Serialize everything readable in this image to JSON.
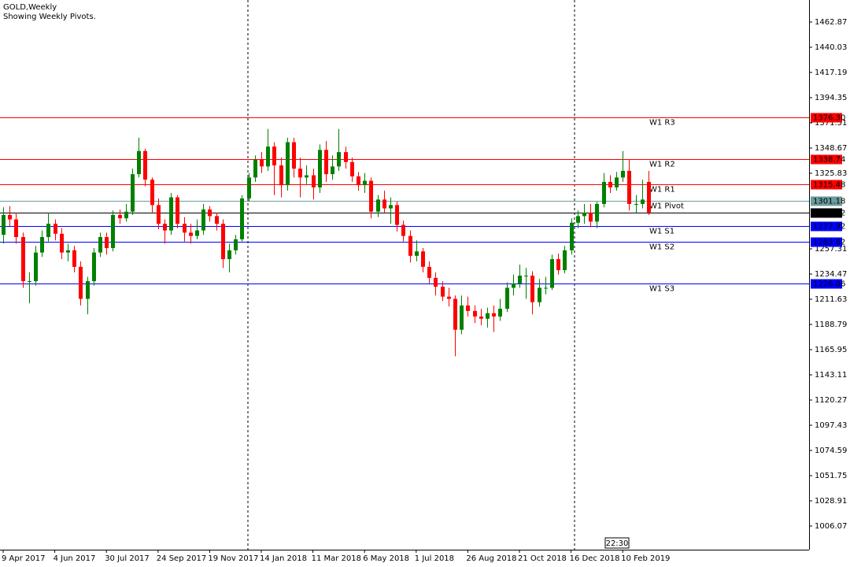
{
  "chart_data": {
    "type": "candlestick",
    "title": "GOLD,Weekly",
    "subtitle": "Showing Weekly Pivots.",
    "categories": [
      "9 Apr 2017",
      null,
      null,
      null,
      null,
      null,
      null,
      null,
      "4 Jun 2017",
      null,
      null,
      null,
      null,
      null,
      null,
      null,
      "30 Jul 2017",
      null,
      null,
      null,
      null,
      null,
      null,
      null,
      "24 Sep 2017",
      null,
      null,
      null,
      null,
      null,
      null,
      null,
      "19 Nov 2017",
      null,
      null,
      null,
      null,
      null,
      null,
      null,
      "14 Jan 2018",
      null,
      null,
      null,
      null,
      null,
      null,
      null,
      "11 Mar 2018",
      null,
      null,
      null,
      null,
      null,
      null,
      null,
      "6 May 2018",
      null,
      null,
      null,
      null,
      null,
      null,
      null,
      "1 Jul 2018",
      null,
      null,
      null,
      null,
      null,
      null,
      null,
      "26 Aug 2018",
      null,
      null,
      null,
      null,
      null,
      null,
      null,
      "21 Oct 2018",
      null,
      null,
      null,
      null,
      null,
      null,
      null,
      "16 Dec 2018",
      null,
      null,
      null,
      null,
      null,
      null,
      null,
      "10 Feb 2019",
      null,
      null,
      null,
      null
    ],
    "open": [
      1270,
      1288,
      1284,
      1268,
      1228,
      1228,
      1254,
      1268,
      1280,
      1271,
      1254,
      1256,
      1241,
      1212,
      1228,
      1254,
      1268,
      1258,
      1288,
      1285,
      1291,
      1325,
      1346,
      1320,
      1297,
      1280,
      1274,
      1304,
      1280,
      1272,
      1269,
      1274,
      1293,
      1287,
      1280,
      1248,
      1256,
      1266,
      1303,
      1322,
      1338,
      1332,
      1350,
      1333,
      1315,
      1354,
      1330,
      1322,
      1324,
      1313,
      1347,
      1325,
      1332,
      1345,
      1336,
      1323,
      1315,
      1319,
      1291,
      1302,
      1294,
      1297,
      1279,
      1269,
      1251,
      1255,
      1241,
      1231,
      1223,
      1214,
      1212,
      1184,
      1206,
      1201,
      1196,
      1194,
      1199,
      1196,
      1203,
      1222,
      1226,
      1233,
      1233,
      1209,
      1222,
      1222,
      1248,
      1238,
      1256,
      1281,
      1287,
      1290,
      1282,
      1298,
      1318,
      1313,
      1322,
      1328,
      1298,
      1298,
      1318
    ],
    "high": [
      1295,
      1296,
      1290,
      1272,
      1236,
      1260,
      1274,
      1290,
      1284,
      1276,
      1262,
      1260,
      1246,
      1232,
      1258,
      1272,
      1272,
      1292,
      1293,
      1298,
      1330,
      1358,
      1348,
      1322,
      1303,
      1284,
      1308,
      1306,
      1286,
      1280,
      1284,
      1298,
      1296,
      1290,
      1284,
      1262,
      1270,
      1306,
      1326,
      1342,
      1345,
      1366,
      1354,
      1340,
      1358,
      1358,
      1340,
      1333,
      1330,
      1352,
      1355,
      1342,
      1366,
      1350,
      1340,
      1327,
      1326,
      1322,
      1306,
      1310,
      1304,
      1300,
      1283,
      1274,
      1265,
      1258,
      1246,
      1236,
      1228,
      1222,
      1215,
      1215,
      1214,
      1206,
      1203,
      1204,
      1206,
      1212,
      1227,
      1234,
      1243,
      1240,
      1237,
      1230,
      1232,
      1252,
      1253,
      1260,
      1285,
      1292,
      1298,
      1298,
      1300,
      1326,
      1324,
      1327,
      1346,
      1338,
      1306,
      1320,
      1328
    ],
    "low": [
      1262,
      1278,
      1262,
      1222,
      1208,
      1224,
      1250,
      1264,
      1265,
      1248,
      1246,
      1236,
      1206,
      1198,
      1224,
      1250,
      1252,
      1255,
      1280,
      1282,
      1288,
      1322,
      1314,
      1290,
      1275,
      1262,
      1270,
      1276,
      1264,
      1262,
      1266,
      1270,
      1282,
      1274,
      1240,
      1236,
      1252,
      1264,
      1300,
      1318,
      1326,
      1328,
      1306,
      1304,
      1310,
      1322,
      1304,
      1316,
      1302,
      1308,
      1318,
      1320,
      1328,
      1330,
      1318,
      1310,
      1308,
      1285,
      1286,
      1290,
      1280,
      1273,
      1264,
      1245,
      1246,
      1236,
      1226,
      1215,
      1210,
      1205,
      1160,
      1180,
      1196,
      1190,
      1188,
      1186,
      1182,
      1192,
      1200,
      1215,
      1222,
      1212,
      1198,
      1205,
      1216,
      1220,
      1234,
      1235,
      1252,
      1276,
      1280,
      1277,
      1276,
      1295,
      1308,
      1310,
      1318,
      1292,
      1290,
      1294,
      1288
    ],
    "close": [
      1288,
      1284,
      1268,
      1228,
      1228,
      1254,
      1268,
      1280,
      1271,
      1254,
      1256,
      1241,
      1212,
      1228,
      1254,
      1268,
      1258,
      1288,
      1285,
      1291,
      1325,
      1346,
      1320,
      1297,
      1280,
      1274,
      1304,
      1280,
      1272,
      1269,
      1274,
      1293,
      1287,
      1280,
      1248,
      1256,
      1266,
      1303,
      1322,
      1338,
      1332,
      1350,
      1333,
      1315,
      1354,
      1330,
      1322,
      1324,
      1313,
      1347,
      1325,
      1332,
      1345,
      1336,
      1323,
      1315,
      1319,
      1291,
      1302,
      1294,
      1297,
      1279,
      1269,
      1251,
      1255,
      1241,
      1231,
      1223,
      1214,
      1212,
      1184,
      1206,
      1201,
      1196,
      1194,
      1199,
      1196,
      1203,
      1222,
      1226,
      1233,
      1233,
      1209,
      1222,
      1222,
      1248,
      1238,
      1256,
      1281,
      1287,
      1290,
      1282,
      1298,
      1318,
      1313,
      1322,
      1328,
      1298,
      1298,
      1302,
      1290.32
    ],
    "up_color": "#008000",
    "down_color": "#ff0000",
    "ylim": [
      984.66,
      1482.85
    ],
    "yticks": [
      1462.87,
      1440.03,
      1417.19,
      1394.35,
      1371.51,
      1348.67,
      1325.83,
      1257.31,
      1234.47,
      1211.63,
      1188.79,
      1165.95,
      1143.11,
      1120.27,
      1097.43,
      1074.59,
      1051.75,
      1028.91,
      1006.07
    ],
    "levels": [
      {
        "name": "W1 R3",
        "value": 1376.3,
        "label": "1376.30",
        "color": "#ff0000"
      },
      {
        "name": "W1 R2",
        "value": 1338.74,
        "label": "1338.74",
        "color": "#ff0000"
      },
      {
        "name": "W1 R1",
        "value": 1315.48,
        "label": "1315.48",
        "color": "#ff0000"
      },
      {
        "name": "W1 Pivot",
        "value": 1301.18,
        "label": "1301.18",
        "color": "#6a9c9c"
      },
      {
        "name": "W1 S1",
        "value": 1277.92,
        "label": "1277.92",
        "color": "#0000ff"
      },
      {
        "name": "W1 S2",
        "value": 1263.62,
        "label": "1263.62",
        "color": "#0000ff"
      },
      {
        "name": "W1 S3",
        "value": 1226.06,
        "label": "1226.06",
        "color": "#0000ff"
      }
    ],
    "current_price": 1290.32,
    "timer": "22:30"
  }
}
